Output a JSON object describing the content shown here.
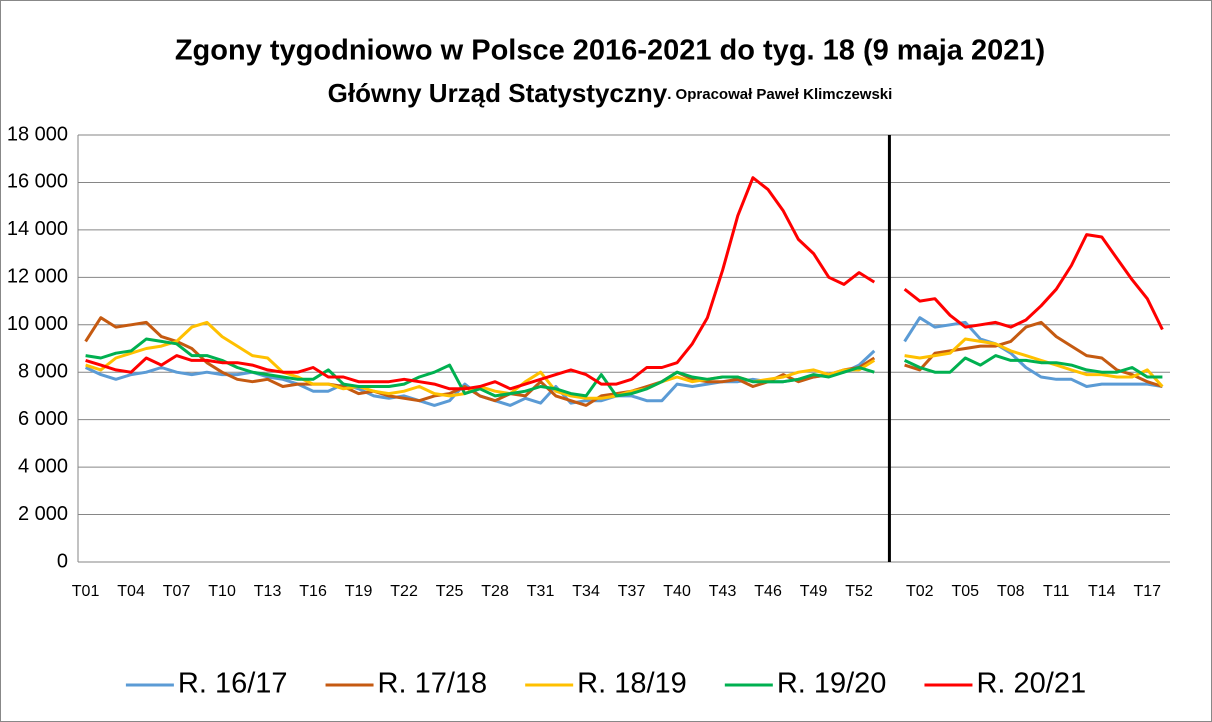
{
  "chart_data": {
    "type": "line",
    "title": "Zgony tygodniowo w Polsce 2016-2021 do tyg. 18 (9 maja 2021)",
    "subtitle": "Główny Urząd Statystyczny",
    "note": ". Opracował Paweł Klimczewski",
    "categories": [
      "T01",
      null,
      null,
      "T04",
      null,
      null,
      "T07",
      null,
      null,
      "T10",
      null,
      null,
      "T13",
      null,
      null,
      "T16",
      null,
      null,
      "T19",
      null,
      null,
      "T22",
      null,
      null,
      "T25",
      null,
      null,
      "T28",
      null,
      null,
      "T31",
      null,
      null,
      "T34",
      null,
      null,
      "T37",
      null,
      null,
      "T40",
      null,
      null,
      "T43",
      null,
      null,
      "T46",
      null,
      null,
      "T49",
      null,
      null,
      "T52",
      null,
      null,
      null,
      "T02",
      null,
      null,
      "T05",
      null,
      null,
      "T08",
      null,
      null,
      "T11",
      null,
      null,
      "T14",
      null,
      null,
      "T17",
      null
    ],
    "series": [
      {
        "name": "R. 16/17",
        "color": "#5b9bd5",
        "values": [
          8200,
          7900,
          7700,
          7900,
          8000,
          8200,
          8000,
          7900,
          8000,
          7900,
          7900,
          8000,
          7800,
          7700,
          7500,
          7200,
          7200,
          7500,
          7300,
          7000,
          6900,
          7000,
          6800,
          6600,
          6800,
          7500,
          7000,
          6800,
          6600,
          6900,
          6700,
          7400,
          6700,
          6800,
          6800,
          7000,
          7000,
          6800,
          6800,
          7500,
          7400,
          7500,
          7600,
          7600,
          7700,
          7600,
          7600,
          7700,
          7800,
          7900,
          8000,
          8300,
          8900,
          null,
          9300,
          10300,
          9900,
          10000,
          10100,
          9400,
          9200,
          8800,
          8200,
          7800,
          7700,
          7700,
          7400,
          7500,
          7500,
          7500,
          7500,
          7400
        ]
      },
      {
        "name": "R. 17/18",
        "color": "#c55a11",
        "values": [
          9300,
          10300,
          9900,
          10000,
          10100,
          9500,
          9300,
          9000,
          8400,
          8000,
          7700,
          7600,
          7700,
          7400,
          7500,
          7500,
          7500,
          7400,
          7100,
          7200,
          7000,
          6900,
          6800,
          7000,
          7100,
          7400,
          7000,
          6800,
          7100,
          7000,
          7600,
          7000,
          6800,
          6600,
          7000,
          7100,
          7200,
          7400,
          7600,
          8000,
          7700,
          7600,
          7600,
          7700,
          7400,
          7600,
          7900,
          7600,
          7800,
          7900,
          8100,
          8200,
          8600,
          null,
          8300,
          8100,
          8800,
          8900,
          9000,
          9100,
          9100,
          9300,
          9900,
          10100,
          9500,
          9100,
          8700,
          8600,
          8100,
          7900,
          7600,
          7400
        ]
      },
      {
        "name": "R. 18/19",
        "color": "#ffc000",
        "values": [
          8300,
          8100,
          8600,
          8800,
          9000,
          9100,
          9300,
          9900,
          10100,
          9500,
          9100,
          8700,
          8600,
          8000,
          7800,
          7500,
          7500,
          7300,
          7400,
          7200,
          7100,
          7200,
          7400,
          7100,
          7000,
          7100,
          7400,
          7200,
          7100,
          7600,
          8000,
          7200,
          7000,
          6900,
          6900,
          7000,
          7200,
          7300,
          7600,
          7800,
          7600,
          7700,
          7800,
          7800,
          7600,
          7700,
          7800,
          8000,
          8100,
          7900,
          8100,
          8100,
          8500,
          null,
          8700,
          8600,
          8700,
          8800,
          9400,
          9300,
          9200,
          8900,
          8700,
          8500,
          8300,
          8100,
          7900,
          7900,
          7800,
          7800,
          8100,
          7400
        ]
      },
      {
        "name": "R. 19/20",
        "color": "#00b050",
        "values": [
          8700,
          8600,
          8800,
          8900,
          9400,
          9300,
          9200,
          8700,
          8700,
          8500,
          8200,
          8000,
          7900,
          7800,
          7700,
          7700,
          8100,
          7500,
          7400,
          7400,
          7400,
          7500,
          7800,
          8000,
          8300,
          7100,
          7300,
          7000,
          7100,
          7200,
          7400,
          7300,
          7100,
          7000,
          7900,
          7000,
          7100,
          7300,
          7600,
          8000,
          7800,
          7700,
          7800,
          7800,
          7600,
          7600,
          7600,
          7700,
          7900,
          7800,
          8000,
          8200,
          8000,
          null,
          8500,
          8200,
          8000,
          8000,
          8600,
          8300,
          8700,
          8500,
          8500,
          8400,
          8400,
          8300,
          8100,
          8000,
          8000,
          8200,
          7800,
          7800
        ]
      },
      {
        "name": "R. 20/21",
        "color": "#ff0000",
        "values": [
          8500,
          8300,
          8100,
          8000,
          8600,
          8300,
          8700,
          8500,
          8500,
          8400,
          8400,
          8300,
          8100,
          8000,
          8000,
          8200,
          7800,
          7800,
          7600,
          7600,
          7600,
          7700,
          7600,
          7500,
          7300,
          7300,
          7400,
          7600,
          7300,
          7500,
          7700,
          7900,
          8100,
          7900,
          7500,
          7500,
          7700,
          8200,
          8200,
          8400,
          9200,
          10300,
          12300,
          14600,
          16200,
          15700,
          14800,
          13600,
          13000,
          12000,
          11700,
          12200,
          11800,
          null,
          11500,
          11000,
          11100,
          10400,
          9900,
          10000,
          10100,
          9900,
          10200,
          10800,
          11500,
          12500,
          13800,
          13700,
          12800,
          11900,
          11100,
          9800
        ]
      }
    ],
    "ylim": [
      0,
      18000
    ],
    "yticks": [
      0,
      {
        "value": 2000,
        "label": "2 000"
      },
      {
        "value": 4000,
        "label": "4 000"
      },
      {
        "value": 6000,
        "label": "6 000"
      },
      {
        "value": 8000,
        "label": "8 000"
      },
      {
        "value": 10000,
        "label": "10 000"
      },
      {
        "value": 12000,
        "label": "12 000"
      },
      {
        "value": 14000,
        "label": "14 000"
      },
      {
        "value": 16000,
        "label": "16 000"
      },
      {
        "value": 18000,
        "label": "18 000"
      }
    ],
    "grid": true,
    "legend": "bottom"
  }
}
